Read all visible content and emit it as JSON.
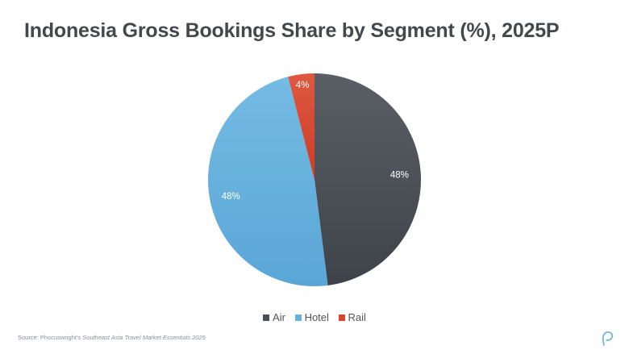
{
  "chart_data": {
    "type": "pie",
    "title": "Indonesia Gross Bookings Share by Segment (%), 2025P",
    "slices": [
      {
        "label": "Air",
        "value": 48,
        "data_label": "48%",
        "color": "#4a4f56"
      },
      {
        "label": "Hotel",
        "value": 48,
        "data_label": "48%",
        "color": "#67b1de"
      },
      {
        "label": "Rail",
        "value": 4,
        "data_label": "4%",
        "color": "#d8472f"
      }
    ],
    "legend_position": "bottom"
  },
  "footer": {
    "source_prefix": "Source: Phocuswright's ",
    "source_title": "Southeast Asia Travel Market Essentials 2025"
  }
}
